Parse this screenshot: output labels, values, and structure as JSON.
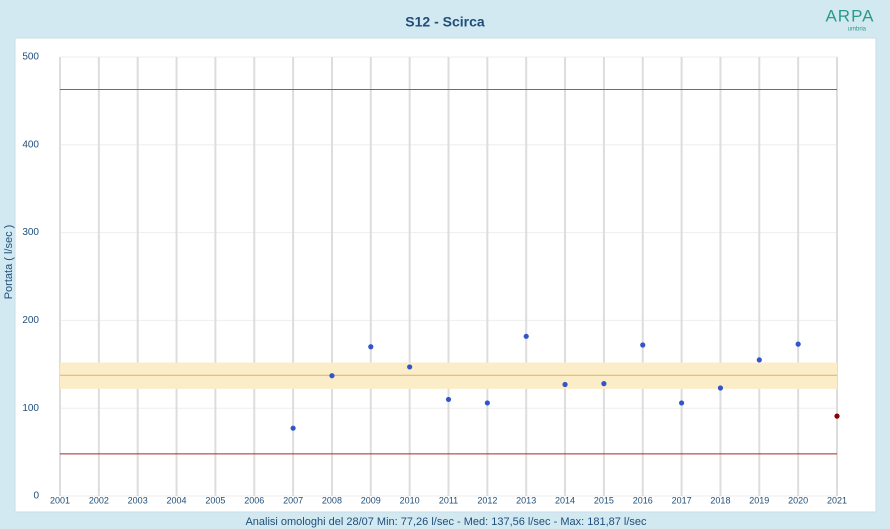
{
  "chart_data": {
    "type": "scatter",
    "title": "S12 - Scirca",
    "logo": "ARPA",
    "logo_sub": "umbria",
    "y_label": "Portata ( l/sec )",
    "footer": "Analisi omologhi del 28/07   Min: 77,26 l/sec - Med: 137,56 l/sec - Max: 181,87 l/sec",
    "x": [
      2007,
      2008,
      2009,
      2010,
      2011,
      2012,
      2013,
      2014,
      2015,
      2016,
      2017,
      2018,
      2019,
      2020,
      2021
    ],
    "values": [
      77.26,
      137,
      170,
      147,
      110,
      106,
      181.87,
      127,
      128,
      172,
      106,
      123,
      155,
      173,
      91
    ],
    "point_colors": [
      "#3355cc",
      "#3355cc",
      "#3355cc",
      "#3355cc",
      "#3355cc",
      "#3355cc",
      "#3355cc",
      "#3355cc",
      "#3355cc",
      "#3355cc",
      "#3355cc",
      "#3355cc",
      "#3355cc",
      "#3355cc",
      "#8b0000"
    ],
    "reference_lines": [
      {
        "value": 463,
        "color": "#2e9a2e"
      },
      {
        "value": 48,
        "color": "#b22222"
      },
      {
        "value": 137.56,
        "color": "#e0b070"
      }
    ],
    "band": {
      "range": [
        122,
        152
      ],
      "color": "#fbedc8"
    },
    "xlim": [
      2001,
      2021
    ],
    "xticks": [
      2001,
      2002,
      2003,
      2004,
      2005,
      2006,
      2007,
      2008,
      2009,
      2010,
      2011,
      2012,
      2013,
      2014,
      2015,
      2016,
      2017,
      2018,
      2019,
      2020,
      2021
    ],
    "ylim": [
      0,
      500
    ],
    "yticks": [
      0,
      100,
      200,
      300,
      400,
      500
    ],
    "grid": true
  }
}
